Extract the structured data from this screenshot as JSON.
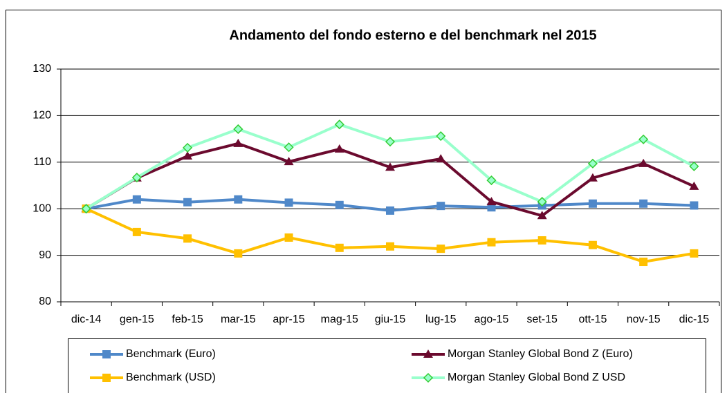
{
  "chart_data": {
    "type": "line",
    "title": "Andamento del fondo esterno e del benchmark nel 2015",
    "categories": [
      "dic-14",
      "gen-15",
      "feb-15",
      "mar-15",
      "apr-15",
      "mag-15",
      "giu-15",
      "lug-15",
      "ago-15",
      "set-15",
      "ott-15",
      "nov-15",
      "dic-15"
    ],
    "series": [
      {
        "name": "Benchmark (Euro)",
        "color": "#4f88c9",
        "marker": "square",
        "values": [
          100,
          102.0,
          101.4,
          102.0,
          101.3,
          100.8,
          99.6,
          100.6,
          100.3,
          100.7,
          101.1,
          101.1,
          100.7
        ]
      },
      {
        "name": "Morgan Stanley Global Bond Z (Euro)",
        "color": "#6b0a2e",
        "marker": "triangle",
        "values": [
          100,
          106.6,
          111.3,
          114.0,
          110.1,
          112.8,
          108.9,
          110.7,
          101.5,
          98.5,
          106.6,
          109.7,
          104.8
        ]
      },
      {
        "name": "Benchmark (USD)",
        "color": "#ffc000",
        "marker": "square",
        "values": [
          100,
          95.0,
          93.6,
          90.4,
          93.8,
          91.6,
          91.9,
          91.4,
          92.8,
          93.2,
          92.2,
          88.6,
          90.4
        ]
      },
      {
        "name": "Morgan Stanley Global Bond Z USD",
        "color": "#99ffcc",
        "marker": "diamond",
        "values": [
          100,
          106.7,
          113.1,
          117.1,
          113.2,
          118.1,
          114.4,
          115.6,
          106.1,
          101.5,
          109.7,
          114.9,
          109.1
        ]
      }
    ],
    "ylim": [
      80,
      130
    ],
    "yticks": [
      80,
      90,
      100,
      110,
      120,
      130
    ],
    "grid": true,
    "legend": "bottom"
  }
}
